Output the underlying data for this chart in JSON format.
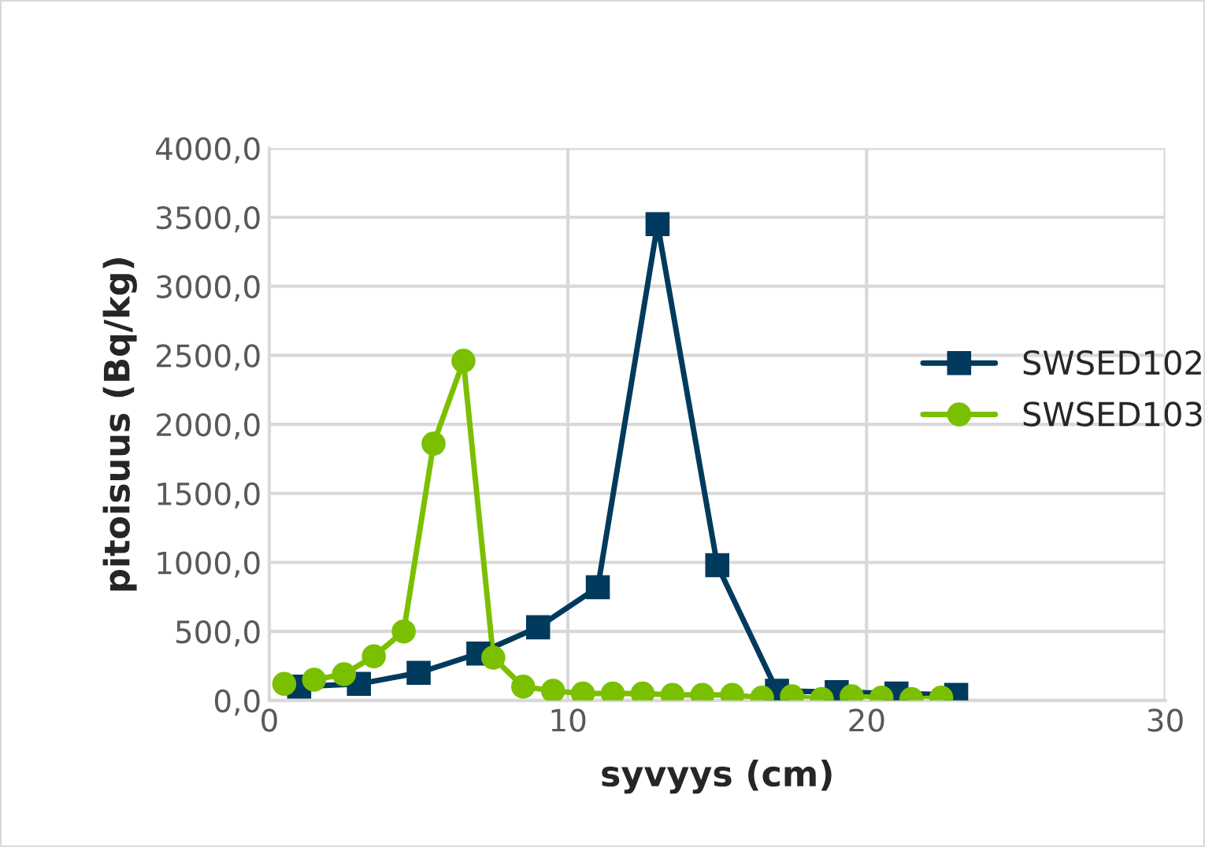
{
  "chart_data": {
    "type": "line",
    "xlabel": "syvyys (cm)",
    "ylabel": "pitoisuus (Bq/kg)",
    "xlim": [
      0,
      30
    ],
    "xticks": [
      0,
      10,
      20,
      30
    ],
    "ylim": [
      0,
      4000
    ],
    "yticks": [
      {
        "value": 0,
        "label": "0,0"
      },
      {
        "value": 500,
        "label": "500,0"
      },
      {
        "value": 1000,
        "label": "1000,0"
      },
      {
        "value": 1500,
        "label": "1500,0"
      },
      {
        "value": 2000,
        "label": "2000,0"
      },
      {
        "value": 2500,
        "label": "2500,0"
      },
      {
        "value": 3000,
        "label": "3000,0"
      },
      {
        "value": 3500,
        "label": "3500,0"
      },
      {
        "value": 4000,
        "label": "4000,0"
      }
    ],
    "grid": true,
    "legend": "right",
    "series": [
      {
        "name": "SWSED102",
        "color": "#003a5c",
        "marker": "square",
        "x": [
          1,
          3,
          5,
          7,
          9,
          11,
          13,
          15,
          17,
          19,
          21,
          23
        ],
        "values": [
          100,
          120,
          200,
          340,
          530,
          820,
          3450,
          980,
          70,
          60,
          50,
          40
        ]
      },
      {
        "name": "SWSED103",
        "color": "#7ac000",
        "marker": "circle",
        "x": [
          0.5,
          1.5,
          2.5,
          3.5,
          4.5,
          5.5,
          6.5,
          7.5,
          8.5,
          9.5,
          10.5,
          11.5,
          12.5,
          13.5,
          14.5,
          15.5,
          16.5,
          17.5,
          18.5,
          19.5,
          20.5,
          21.5,
          22.5
        ],
        "values": [
          120,
          150,
          190,
          320,
          500,
          1860,
          2460,
          310,
          100,
          70,
          50,
          50,
          50,
          40,
          40,
          40,
          20,
          30,
          10,
          30,
          20,
          10,
          20
        ]
      }
    ]
  }
}
